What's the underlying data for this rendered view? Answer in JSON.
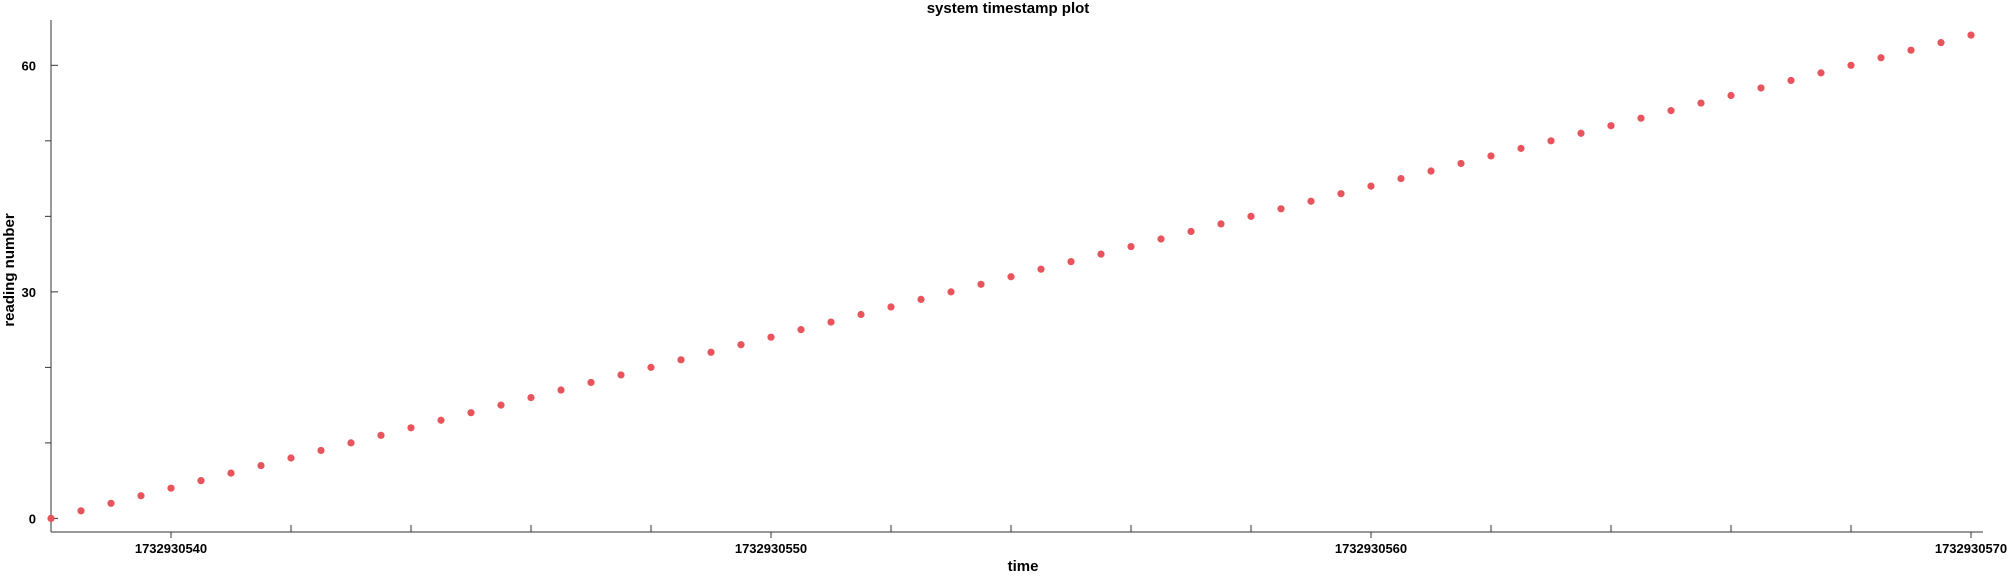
{
  "chart_data": {
    "type": "scatter",
    "title": "system timestamp plot",
    "xlabel": "time",
    "ylabel": "reading number",
    "x_start": 1732930538,
    "x_step": 0.5,
    "y": [
      0,
      1,
      2,
      3,
      4,
      5,
      6,
      7,
      8,
      9,
      10,
      11,
      12,
      13,
      14,
      15,
      16,
      17,
      18,
      19,
      20,
      21,
      22,
      23,
      24,
      25,
      26,
      27,
      28,
      29,
      30,
      31,
      32,
      33,
      34,
      35,
      36,
      37,
      38,
      39,
      40,
      41,
      42,
      43,
      44,
      45,
      46,
      47,
      48,
      49,
      50,
      51,
      52,
      53,
      54,
      55,
      56,
      57,
      58,
      59,
      60,
      61,
      62,
      63,
      64
    ],
    "xlim": [
      1732930538,
      1732930570.2
    ],
    "ylim": [
      -1.8,
      66
    ],
    "xticks_major": [
      1732930540,
      1732930550,
      1732930560,
      1732930570
    ],
    "xtick_labels": [
      "1732930540",
      "1732930550",
      "1732930560",
      "1732930570"
    ],
    "xticks_minor_step": 2,
    "yticks_major": [
      0,
      30,
      60
    ],
    "ytick_labels": [
      "0",
      "30",
      "60"
    ],
    "yticks_minor_step": 10,
    "grid": false,
    "legend": "none",
    "point_color": "#e8545b"
  }
}
